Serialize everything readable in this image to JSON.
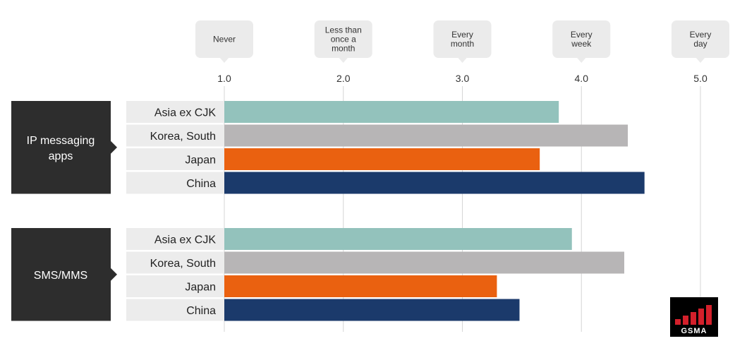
{
  "chart_data": {
    "type": "bar",
    "orientation": "horizontal",
    "xlim": [
      1.0,
      5.0
    ],
    "x_ticks": [
      "1.0",
      "2.0",
      "3.0",
      "4.0",
      "5.0"
    ],
    "frequency_scale": [
      {
        "value": 1,
        "label": [
          "Never"
        ]
      },
      {
        "value": 2,
        "label": [
          "Less than",
          "once a",
          "month"
        ]
      },
      {
        "value": 3,
        "label": [
          "Every",
          "month"
        ]
      },
      {
        "value": 4,
        "label": [
          "Every",
          "week"
        ]
      },
      {
        "value": 5,
        "label": [
          "Every",
          "day"
        ]
      }
    ],
    "region_colors": {
      "Asia ex CJK": "#93c2bc",
      "Korea, South": "#b7b5b6",
      "Japan": "#ea6110",
      "China": "#1b3a6b"
    },
    "groups": [
      {
        "name": [
          "IP messaging",
          "apps"
        ],
        "bars": [
          {
            "label": "Asia ex CJK",
            "value": 3.81
          },
          {
            "label": "Korea, South",
            "value": 4.39
          },
          {
            "label": "Japan",
            "value": 3.65
          },
          {
            "label": "China",
            "value": 4.53
          }
        ]
      },
      {
        "name": [
          "SMS/MMS"
        ],
        "bars": [
          {
            "label": "Asia ex CJK",
            "value": 3.92
          },
          {
            "label": "Korea, South",
            "value": 4.36
          },
          {
            "label": "Japan",
            "value": 3.29
          },
          {
            "label": "China",
            "value": 3.48
          }
        ]
      }
    ]
  },
  "logo": {
    "text": "GSMA",
    "bar_color": "#d4202b",
    "bg_color": "#000000"
  }
}
